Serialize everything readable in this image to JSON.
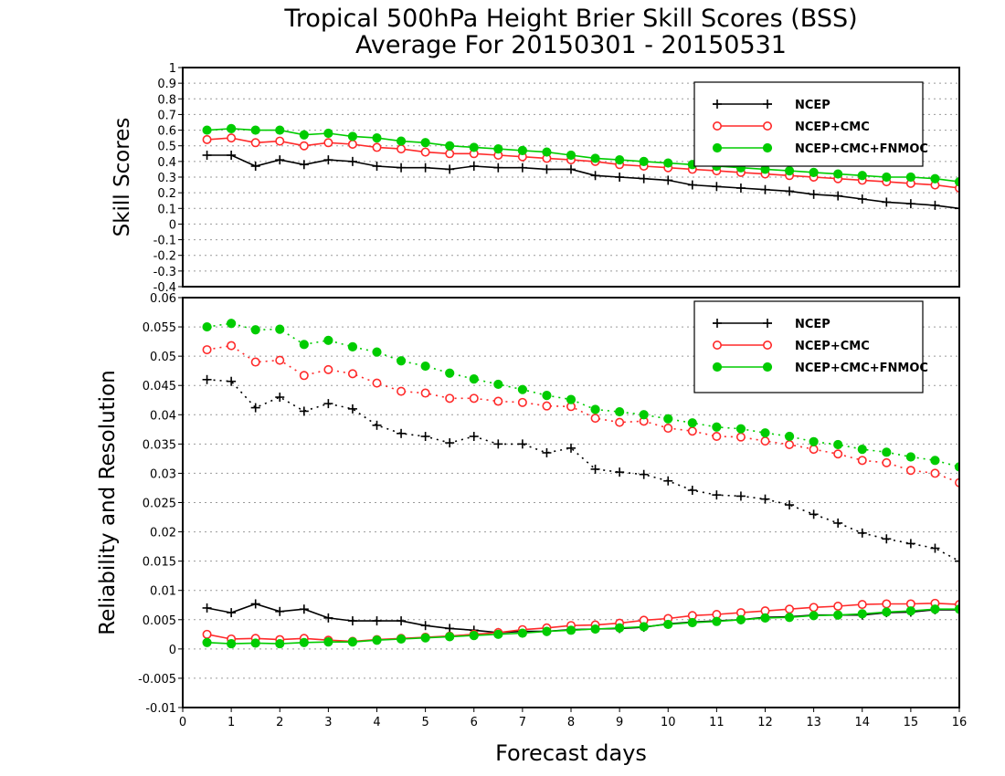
{
  "title": "Tropical 500hPa Height Brier Skill Scores (BSS)",
  "subtitle": "Average For 20150301 - 20150531",
  "colors": {
    "NCEP": "#000000",
    "NCEP+CMC": "#ff2a2a",
    "NCEP+CMC+FNMOC": "#00cc00"
  },
  "chart_data": [
    {
      "type": "line",
      "ylabel": "Skill Scores",
      "xlim": [
        0,
        16
      ],
      "ylim": [
        -0.4,
        1
      ],
      "yticks": [
        "-0.4",
        "-0.3",
        "-0.2",
        "-0.1",
        "0",
        "0.1",
        "0.2",
        "0.3",
        "0.4",
        "0.5",
        "0.6",
        "0.7",
        "0.8",
        "0.9",
        "1"
      ],
      "grid": true,
      "legend_position": "top-right",
      "x": [
        0.5,
        1,
        1.5,
        2,
        2.5,
        3,
        3.5,
        4,
        4.5,
        5,
        5.5,
        6,
        6.5,
        7,
        7.5,
        8,
        8.5,
        9,
        9.5,
        10,
        10.5,
        11,
        11.5,
        12,
        12.5,
        13,
        13.5,
        14,
        14.5,
        15,
        15.5,
        16
      ],
      "series": [
        {
          "name": "NCEP",
          "marker": "plus",
          "linestyle": "solid",
          "values": [
            0.44,
            0.44,
            0.37,
            0.41,
            0.38,
            0.41,
            0.4,
            0.37,
            0.36,
            0.36,
            0.35,
            0.37,
            0.36,
            0.36,
            0.35,
            0.35,
            0.31,
            0.3,
            0.29,
            0.28,
            0.25,
            0.24,
            0.23,
            0.22,
            0.21,
            0.19,
            0.18,
            0.16,
            0.14,
            0.13,
            0.12,
            0.1
          ]
        },
        {
          "name": "NCEP+CMC",
          "marker": "open-circle",
          "linestyle": "solid",
          "values": [
            0.54,
            0.55,
            0.52,
            0.53,
            0.5,
            0.52,
            0.51,
            0.49,
            0.48,
            0.46,
            0.45,
            0.45,
            0.44,
            0.43,
            0.42,
            0.41,
            0.4,
            0.38,
            0.37,
            0.36,
            0.35,
            0.34,
            0.33,
            0.32,
            0.31,
            0.3,
            0.29,
            0.28,
            0.27,
            0.26,
            0.25,
            0.23
          ]
        },
        {
          "name": "NCEP+CMC+FNMOC",
          "marker": "filled-circle",
          "linestyle": "solid",
          "values": [
            0.6,
            0.61,
            0.6,
            0.6,
            0.57,
            0.58,
            0.56,
            0.55,
            0.53,
            0.52,
            0.5,
            0.49,
            0.48,
            0.47,
            0.46,
            0.44,
            0.42,
            0.41,
            0.4,
            0.39,
            0.38,
            0.37,
            0.36,
            0.35,
            0.34,
            0.33,
            0.32,
            0.31,
            0.3,
            0.3,
            0.29,
            0.27
          ]
        }
      ]
    },
    {
      "type": "line",
      "ylabel": "Reliability and Resolution",
      "xlabel": "Forecast days",
      "xlim": [
        0,
        16
      ],
      "ylim": [
        -0.01,
        0.06
      ],
      "xticks": [
        "0",
        "1",
        "2",
        "3",
        "4",
        "5",
        "6",
        "7",
        "8",
        "9",
        "10",
        "11",
        "12",
        "13",
        "14",
        "15",
        "16"
      ],
      "yticks": [
        "-0.01",
        "-0.005",
        "0",
        "0.005",
        "0.01",
        "0.015",
        "0.02",
        "0.025",
        "0.03",
        "0.035",
        "0.04",
        "0.045",
        "0.05",
        "0.055",
        "0.06"
      ],
      "grid": true,
      "legend_position": "top-right",
      "x": [
        0.5,
        1,
        1.5,
        2,
        2.5,
        3,
        3.5,
        4,
        4.5,
        5,
        5.5,
        6,
        6.5,
        7,
        7.5,
        8,
        8.5,
        9,
        9.5,
        10,
        10.5,
        11,
        11.5,
        12,
        12.5,
        13,
        13.5,
        14,
        14.5,
        15,
        15.5,
        16
      ],
      "series": [
        {
          "name": "NCEP",
          "role": "resolution",
          "marker": "plus",
          "linestyle": "dotted",
          "values": [
            0.046,
            0.0457,
            0.0412,
            0.043,
            0.0406,
            0.0419,
            0.041,
            0.0382,
            0.0368,
            0.0363,
            0.0352,
            0.0363,
            0.035,
            0.035,
            0.0335,
            0.0343,
            0.0307,
            0.0302,
            0.0298,
            0.0287,
            0.0271,
            0.0263,
            0.0261,
            0.0256,
            0.0246,
            0.023,
            0.0215,
            0.0198,
            0.0188,
            0.018,
            0.0172,
            0.015
          ]
        },
        {
          "name": "NCEP+CMC",
          "role": "resolution",
          "marker": "open-circle",
          "linestyle": "dotted",
          "values": [
            0.0511,
            0.0518,
            0.049,
            0.0493,
            0.0467,
            0.0477,
            0.047,
            0.0454,
            0.044,
            0.0437,
            0.0428,
            0.0428,
            0.0423,
            0.0421,
            0.0415,
            0.0414,
            0.0394,
            0.0387,
            0.0389,
            0.0377,
            0.0372,
            0.0363,
            0.0362,
            0.0355,
            0.0349,
            0.0341,
            0.0333,
            0.0322,
            0.0318,
            0.0305,
            0.03,
            0.0284
          ]
        },
        {
          "name": "NCEP+CMC+FNMOC",
          "role": "resolution",
          "marker": "filled-circle",
          "linestyle": "dotted",
          "values": [
            0.055,
            0.0556,
            0.0545,
            0.0546,
            0.052,
            0.0527,
            0.0516,
            0.0507,
            0.0492,
            0.0483,
            0.0471,
            0.0461,
            0.0452,
            0.0443,
            0.0433,
            0.0426,
            0.0409,
            0.0405,
            0.04,
            0.0393,
            0.0386,
            0.0379,
            0.0376,
            0.0369,
            0.0363,
            0.0354,
            0.0349,
            0.0341,
            0.0336,
            0.0328,
            0.0322,
            0.0311
          ]
        },
        {
          "name": "NCEP",
          "role": "reliability",
          "marker": "plus",
          "linestyle": "solid",
          "values": [
            0.007,
            0.0062,
            0.0077,
            0.0064,
            0.0068,
            0.0053,
            0.0048,
            0.0048,
            0.0048,
            0.004,
            0.0035,
            0.0032,
            0.0028,
            0.003,
            0.003,
            0.0033,
            0.0034,
            0.0035,
            0.0037,
            0.0043,
            0.0046,
            0.0048,
            0.005,
            0.0054,
            0.0055,
            0.0058,
            0.0058,
            0.0058,
            0.0062,
            0.0063,
            0.0067,
            0.0067
          ]
        },
        {
          "name": "NCEP+CMC",
          "role": "reliability",
          "marker": "open-circle",
          "linestyle": "solid",
          "values": [
            0.0025,
            0.0017,
            0.0018,
            0.0016,
            0.0018,
            0.0015,
            0.0013,
            0.0016,
            0.0018,
            0.002,
            0.0022,
            0.0025,
            0.0028,
            0.0033,
            0.0036,
            0.004,
            0.0041,
            0.0044,
            0.0049,
            0.0052,
            0.0057,
            0.0059,
            0.0062,
            0.0065,
            0.0068,
            0.0071,
            0.0073,
            0.0076,
            0.0077,
            0.0077,
            0.0078,
            0.0076
          ]
        },
        {
          "name": "NCEP+CMC+FNMOC",
          "role": "reliability",
          "marker": "filled-circle",
          "linestyle": "solid",
          "values": [
            0.0011,
            0.0009,
            0.001,
            0.0009,
            0.0011,
            0.0012,
            0.0012,
            0.0015,
            0.0017,
            0.0019,
            0.0021,
            0.0023,
            0.0025,
            0.0027,
            0.003,
            0.0032,
            0.0034,
            0.0036,
            0.0038,
            0.0042,
            0.0045,
            0.0047,
            0.005,
            0.0053,
            0.0054,
            0.0057,
            0.0058,
            0.006,
            0.0063,
            0.0065,
            0.0068,
            0.0068
          ]
        }
      ]
    }
  ]
}
